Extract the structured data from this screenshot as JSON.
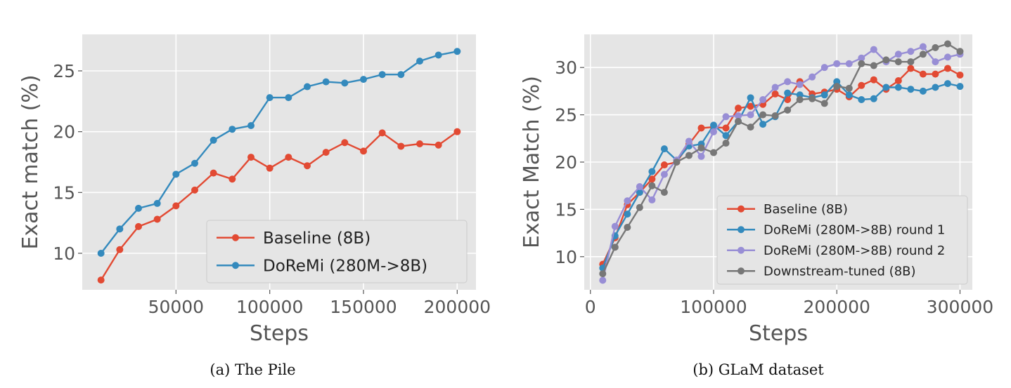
{
  "chart_data": [
    {
      "type": "line",
      "caption": "(a) The Pile",
      "title": "",
      "xlabel": "Steps",
      "ylabel": "Exact match (%)",
      "xlim": [
        0,
        210000
      ],
      "ylim": [
        7,
        28
      ],
      "xticks": [
        50000,
        100000,
        150000,
        200000
      ],
      "yticks": [
        10,
        15,
        20,
        25
      ],
      "grid": true,
      "legend_position": "lower-right",
      "x": [
        10000,
        20000,
        30000,
        40000,
        50000,
        60000,
        70000,
        80000,
        90000,
        100000,
        110000,
        120000,
        130000,
        140000,
        150000,
        160000,
        170000,
        180000,
        190000,
        200000
      ],
      "series": [
        {
          "name": "Baseline (8B)",
          "color": "#e24a33",
          "values": [
            7.8,
            10.3,
            12.2,
            12.8,
            13.9,
            15.2,
            16.6,
            16.1,
            17.9,
            17.0,
            17.9,
            17.2,
            18.3,
            19.1,
            18.4,
            19.9,
            18.8,
            19.0,
            18.9,
            20.0
          ]
        },
        {
          "name": "DoReMi (280M->8B)",
          "color": "#348abd",
          "values": [
            10.0,
            12.0,
            13.7,
            14.1,
            16.5,
            17.4,
            19.3,
            20.2,
            20.5,
            22.8,
            22.8,
            23.7,
            24.1,
            24.0,
            24.3,
            24.7,
            24.7,
            25.8,
            26.3,
            26.6
          ]
        }
      ]
    },
    {
      "type": "line",
      "caption": "(b) GLaM dataset",
      "title": "",
      "xlabel": "Steps",
      "ylabel": "Exact Match (%)",
      "xlim": [
        -5000,
        310000
      ],
      "ylim": [
        6.5,
        33.5
      ],
      "xticks": [
        0,
        100000,
        200000,
        300000
      ],
      "yticks": [
        10,
        15,
        20,
        25,
        30
      ],
      "grid": true,
      "legend_position": "lower-right",
      "x": [
        10000,
        20000,
        30000,
        40000,
        50000,
        60000,
        70000,
        80000,
        90000,
        100000,
        110000,
        120000,
        130000,
        140000,
        150000,
        160000,
        170000,
        180000,
        190000,
        200000,
        210000,
        220000,
        230000,
        240000,
        250000,
        260000,
        270000,
        280000,
        290000,
        300000
      ],
      "series": [
        {
          "name": "Baseline (8B)",
          "color": "#e24a33",
          "values": [
            9.2,
            12.0,
            15.5,
            16.8,
            18.2,
            19.7,
            20.0,
            21.9,
            23.6,
            23.7,
            23.6,
            25.7,
            25.9,
            26.1,
            27.2,
            26.6,
            28.5,
            27.2,
            27.4,
            27.7,
            26.9,
            28.1,
            28.7,
            27.7,
            28.6,
            29.9,
            29.3,
            29.3,
            29.9,
            29.2
          ]
        },
        {
          "name": "DoReMi (280M->8B) round 1",
          "color": "#348abd",
          "values": [
            8.8,
            12.2,
            14.5,
            16.8,
            19.0,
            21.4,
            20.2,
            21.7,
            21.9,
            23.9,
            22.8,
            24.3,
            26.8,
            24.0,
            24.8,
            27.3,
            27.1,
            26.8,
            27.1,
            28.5,
            27.1,
            26.6,
            26.7,
            27.9,
            27.9,
            27.7,
            27.5,
            27.9,
            28.3,
            28.0
          ]
        },
        {
          "name": "DoReMi (280M->8B) round 2",
          "color": "#988ed5",
          "values": [
            7.5,
            13.2,
            15.9,
            17.4,
            16.0,
            18.7,
            20.2,
            22.2,
            20.6,
            23.2,
            24.8,
            24.9,
            25.0,
            26.6,
            27.9,
            28.5,
            28.2,
            29.0,
            30.0,
            30.4,
            30.4,
            31.0,
            31.9,
            30.6,
            31.4,
            31.7,
            32.2,
            30.6,
            31.1,
            31.4
          ]
        },
        {
          "name": "Downstream-tuned (8B)",
          "color": "#777777",
          "values": [
            8.2,
            11.0,
            13.1,
            15.2,
            17.5,
            16.8,
            20.0,
            20.7,
            21.5,
            21.0,
            22.0,
            24.3,
            23.7,
            25.0,
            24.9,
            25.5,
            26.6,
            26.7,
            26.2,
            28.0,
            27.8,
            30.4,
            30.2,
            30.8,
            30.6,
            30.6,
            31.4,
            32.1,
            32.5,
            31.7
          ]
        }
      ]
    }
  ]
}
